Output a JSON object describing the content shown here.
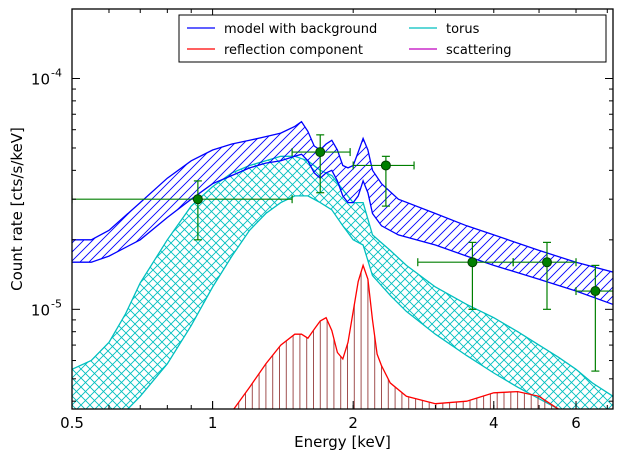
{
  "chart_data": {
    "type": "line",
    "title": "",
    "xlabel": "Energy [keV]",
    "ylabel": "Count rate [cts/s/keV]",
    "xscale": "log",
    "yscale": "log",
    "xlim": [
      0.5,
      7.2
    ],
    "ylim": [
      3.7e-06,
      0.0002
    ],
    "x_ticks": [
      {
        "value": 0.5,
        "label": "0.5"
      },
      {
        "value": 1,
        "label": "1"
      },
      {
        "value": 2,
        "label": "2"
      },
      {
        "value": 4,
        "label": "4"
      },
      {
        "value": 6,
        "label": "6"
      }
    ],
    "y_ticks": [
      {
        "value": 1e-05,
        "label": "10^-5",
        "base": "10",
        "exp": "-5"
      },
      {
        "value": 0.0001,
        "label": "10^-4",
        "base": "10",
        "exp": "-4"
      }
    ],
    "legend": {
      "placement": "top-right",
      "entries": [
        {
          "name": "model with background",
          "color": "#0000ff"
        },
        {
          "name": "torus",
          "color": "#00bfbf"
        },
        {
          "name": "reflection component",
          "color": "#ff0000"
        },
        {
          "name": "scattering",
          "color": "#bf00bf"
        }
      ]
    },
    "series": [
      {
        "name": "model with background",
        "color": "#0000ff",
        "band": true,
        "x": [
          0.5,
          0.55,
          0.6,
          0.7,
          0.8,
          0.9,
          1.0,
          1.1,
          1.2,
          1.3,
          1.4,
          1.5,
          1.55,
          1.6,
          1.65,
          1.7,
          1.75,
          1.8,
          1.85,
          1.9,
          1.95,
          2.0,
          2.05,
          2.1,
          2.15,
          2.2,
          2.3,
          2.5,
          3.0,
          3.5,
          4.0,
          5.0,
          6.0,
          7.2
        ],
        "upper": [
          2e-05,
          2e-05,
          2.2e-05,
          2.9e-05,
          3.7e-05,
          4.4e-05,
          4.9e-05,
          5.2e-05,
          5.4e-05,
          5.6e-05,
          5.8e-05,
          6.2e-05,
          6.5e-05,
          5.9e-05,
          5.1e-05,
          4.9e-05,
          5.2e-05,
          5.4e-05,
          4.9e-05,
          4.2e-05,
          4.1e-05,
          4.2e-05,
          4.8e-05,
          5.5e-05,
          4.9e-05,
          4e-05,
          3.5e-05,
          3e-05,
          2.6e-05,
          2.3e-05,
          2.1e-05,
          1.8e-05,
          1.6e-05,
          1.45e-05
        ],
        "lower": [
          1.6e-05,
          1.6e-05,
          1.7e-05,
          2e-05,
          2.5e-05,
          3e-05,
          3.5e-05,
          3.8e-05,
          4.1e-05,
          4.3e-05,
          4.4e-05,
          4.6e-05,
          4.7e-05,
          4.4e-05,
          3.9e-05,
          3.7e-05,
          3.9e-05,
          4e-05,
          3.6e-05,
          3.1e-05,
          2.9e-05,
          2.9e-05,
          3.1e-05,
          3.6e-05,
          3.2e-05,
          2.6e-05,
          2.3e-05,
          2.1e-05,
          1.9e-05,
          1.7e-05,
          1.55e-05,
          1.35e-05,
          1.2e-05,
          1.05e-05
        ]
      },
      {
        "name": "torus",
        "color": "#00bfbf",
        "band": true,
        "x": [
          0.5,
          0.55,
          0.6,
          0.65,
          0.7,
          0.8,
          0.9,
          1.0,
          1.1,
          1.2,
          1.3,
          1.4,
          1.5,
          1.6,
          1.7,
          1.8,
          1.9,
          2.0,
          2.1,
          2.2,
          2.4,
          2.6,
          3.0,
          3.5,
          4.0,
          4.5,
          5.0,
          5.5,
          6.0,
          6.5,
          7.2
        ],
        "upper": [
          5.5e-06,
          6e-06,
          7.2e-06,
          9.5e-06,
          1.3e-05,
          2e-05,
          2.8e-05,
          3.4e-05,
          3.9e-05,
          4.2e-05,
          4.4e-05,
          4.6e-05,
          4.6e-05,
          4.4e-05,
          4e-05,
          3.8e-05,
          3.3e-05,
          2.9e-05,
          2.9e-05,
          2.1e-05,
          1.8e-05,
          1.55e-05,
          1.25e-05,
          1.05e-05,
          9.2e-06,
          8e-06,
          7e-06,
          6.2e-06,
          5.5e-06,
          4.8e-06,
          4.2e-06
        ],
        "lower": [
          2.5e-06,
          2.8e-06,
          3.2e-06,
          3.6e-06,
          4.2e-06,
          5.8e-06,
          8.5e-06,
          1.25e-05,
          1.7e-05,
          2.2e-05,
          2.6e-05,
          2.9e-05,
          3.1e-05,
          3.1e-05,
          2.9e-05,
          2.7e-05,
          2.3e-05,
          2e-05,
          1.9e-05,
          1.4e-05,
          1.15e-05,
          9.8e-06,
          7.8e-06,
          6.3e-06,
          5.3e-06,
          4.6e-06,
          4.1e-06,
          3.7e-06,
          3.3e-06,
          3e-06,
          2.7e-06
        ]
      },
      {
        "name": "reflection component",
        "color": "#ff0000",
        "band": false,
        "x": [
          1.1,
          1.2,
          1.3,
          1.4,
          1.5,
          1.55,
          1.6,
          1.65,
          1.7,
          1.75,
          1.8,
          1.85,
          1.9,
          1.95,
          2.0,
          2.05,
          2.1,
          2.15,
          2.2,
          2.25,
          2.3,
          2.4,
          2.6,
          3.0,
          3.5,
          4.0,
          4.5,
          5.0,
          5.5
        ],
        "y": [
          3.6e-06,
          4.6e-06,
          5.8e-06,
          7e-06,
          7.8e-06,
          7.8e-06,
          7.5e-06,
          8.2e-06,
          8.9e-06,
          9.2e-06,
          8.1e-06,
          6.5e-06,
          6.1e-06,
          7.2e-06,
          9.8e-06,
          1.32e-05,
          1.55e-05,
          1.35e-05,
          9e-06,
          6.4e-06,
          5.7e-06,
          4.8e-06,
          4.2e-06,
          3.9e-06,
          4e-06,
          4.35e-06,
          4.4e-06,
          4.2e-06,
          3.7e-06
        ]
      }
    ],
    "data_points": {
      "color": "#007f00",
      "points": [
        {
          "x": 0.93,
          "y": 3e-05,
          "xlo": 0.5,
          "xhi": 1.48,
          "ylo": 2e-05,
          "yhi": 3.6e-05
        },
        {
          "x": 1.7,
          "y": 4.8e-05,
          "xlo": 1.48,
          "xhi": 1.97,
          "ylo": 3.2e-05,
          "yhi": 5.7e-05
        },
        {
          "x": 2.35,
          "y": 4.2e-05,
          "xlo": 2.0,
          "xhi": 2.7,
          "ylo": 2.8e-05,
          "yhi": 4.6e-05
        },
        {
          "x": 3.6,
          "y": 1.6e-05,
          "xlo": 2.75,
          "xhi": 4.4,
          "ylo": 1e-05,
          "yhi": 1.95e-05
        },
        {
          "x": 5.2,
          "y": 1.6e-05,
          "xlo": 4.4,
          "xhi": 6.0,
          "ylo": 1e-05,
          "yhi": 1.95e-05
        },
        {
          "x": 6.6,
          "y": 1.2e-05,
          "xlo": 6.0,
          "xhi": 7.2,
          "ylo": 5.4e-06,
          "yhi": 1.55e-05
        }
      ]
    }
  }
}
